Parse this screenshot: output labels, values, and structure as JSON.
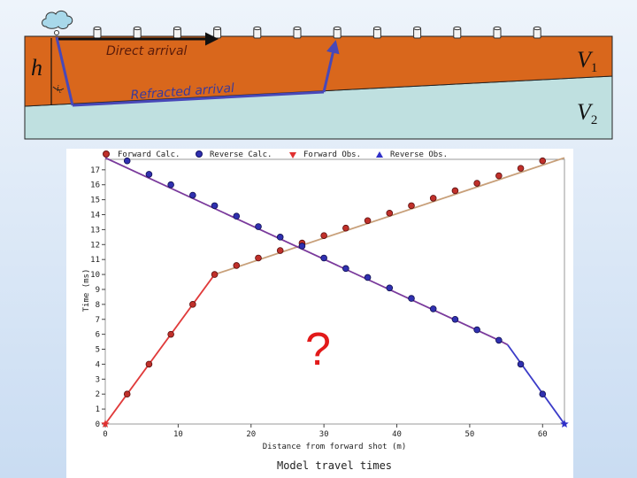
{
  "model": {
    "layer_label": "h",
    "angle_label": "i",
    "angle_subscript": "c",
    "v1_label": "V",
    "v1_subscript": "1",
    "v2_label": "V",
    "v2_subscript": "2",
    "direct_arrival_label": "Direct arrival",
    "refracted_arrival_label": "Refracted arrival",
    "colors": {
      "upper_layer": "#d9671c",
      "lower_layer": "#bfe0e0",
      "ray": "#4848b8",
      "direct_ray": "#111111"
    }
  },
  "question_mark": "?",
  "chart_data": {
    "type": "line",
    "title": "Model travel times",
    "xlabel": "Distance from forward shot (m)",
    "ylabel": "Time (ms)",
    "xlim": [
      0,
      63
    ],
    "ylim": [
      0,
      17.7
    ],
    "xticks": [
      0,
      10,
      20,
      30,
      40,
      50,
      60
    ],
    "yticks": [
      0,
      1,
      2,
      3,
      4,
      5,
      6,
      7,
      8,
      9,
      10,
      11,
      12,
      13,
      14,
      15,
      16,
      17
    ],
    "legend": [
      "Forward Calc.",
      "Reverse Calc.",
      "Forward Obs.",
      "Reverse Obs."
    ],
    "legend_placement": "top",
    "colors": {
      "forward_direct": "#e03a3a",
      "forward_refracted": "#c8a07a",
      "reverse": "#7a3a9c",
      "reverse_direct": "#3b3bc8",
      "forward_point": "#c0302a",
      "reverse_point": "#3030b0",
      "obs_down": "#e03030",
      "obs_up": "#3030c8"
    },
    "forward_line": [
      [
        0,
        0
      ],
      [
        15,
        10
      ],
      [
        63,
        17.8
      ]
    ],
    "forward_direct_end_index": 1,
    "reverse_line": [
      [
        0,
        17.8
      ],
      [
        54,
        5.6
      ],
      [
        55.2,
        5.3
      ],
      [
        63,
        0
      ]
    ],
    "reverse_direct_start_index": 2,
    "forward_calc_points": [
      [
        3,
        2
      ],
      [
        6,
        4
      ],
      [
        9,
        6
      ],
      [
        12,
        8
      ],
      [
        15,
        10
      ],
      [
        18,
        10.6
      ],
      [
        21,
        11.1
      ],
      [
        24,
        11.6
      ],
      [
        27,
        12.1
      ],
      [
        30,
        12.6
      ],
      [
        33,
        13.1
      ],
      [
        36,
        13.6
      ],
      [
        39,
        14.1
      ],
      [
        42,
        14.6
      ],
      [
        45,
        15.1
      ],
      [
        48,
        15.6
      ],
      [
        51,
        16.1
      ],
      [
        54,
        16.6
      ],
      [
        57,
        17.1
      ],
      [
        60,
        17.6
      ]
    ],
    "reverse_calc_points": [
      [
        3,
        17.6
      ],
      [
        6,
        16.7
      ],
      [
        9,
        16
      ],
      [
        12,
        15.3
      ],
      [
        15,
        14.6
      ],
      [
        18,
        13.9
      ],
      [
        21,
        13.2
      ],
      [
        24,
        12.5
      ],
      [
        27,
        11.9
      ],
      [
        30,
        11.1
      ],
      [
        33,
        10.4
      ],
      [
        36,
        9.8
      ],
      [
        39,
        9.1
      ],
      [
        42,
        8.4
      ],
      [
        45,
        7.7
      ],
      [
        48,
        7
      ],
      [
        51,
        6.3
      ],
      [
        54,
        5.6
      ],
      [
        57,
        4
      ],
      [
        60,
        2
      ]
    ],
    "forward_obs_points": [
      [
        0,
        0
      ]
    ],
    "reverse_obs_points": [
      [
        63,
        0
      ]
    ]
  }
}
